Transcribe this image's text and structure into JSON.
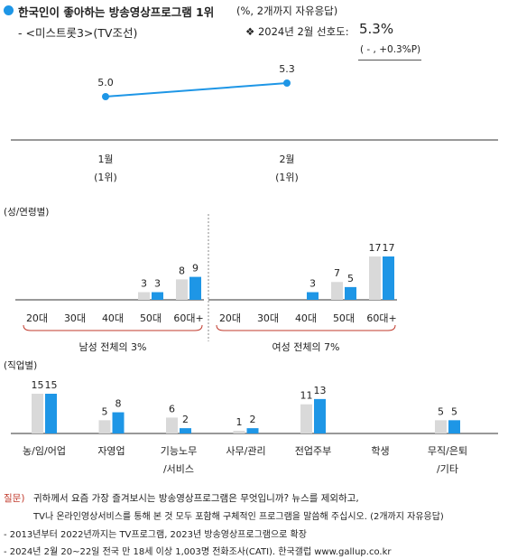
{
  "header": {
    "title": "한국인이 좋아하는 방송영상프로그램 1위",
    "title_suffix": "(%, 2개까지 자유응답)",
    "subtitle": "- <미스트롯3>(TV조선)",
    "pref_label": "❖  2024년 2월 선호도:",
    "pref_value": "5.3%",
    "pref_change": "( - , +0.3%P)"
  },
  "colors": {
    "accent": "#1e96e6",
    "grey_bar": "#d9d9d9",
    "axis": "#333333",
    "bracket": "#c0392b",
    "question": "#c0392b"
  },
  "chart_data": [
    {
      "id": "trend",
      "type": "line",
      "categories": [
        "1월",
        "2월"
      ],
      "rank_labels": [
        "(1위)",
        "(1위)"
      ],
      "values": [
        5.0,
        5.3
      ],
      "value_labels": [
        "5.0",
        "5.3"
      ]
    },
    {
      "id": "gender_age",
      "type": "bar",
      "title": "(성/연령별)",
      "groups": [
        {
          "categories": [
            "20대",
            "30대",
            "40대",
            "50대",
            "60대+"
          ],
          "series": [
            {
              "values": [
                0,
                0,
                0,
                3,
                8
              ],
              "labels": [
                "",
                "",
                "",
                "3",
                "8"
              ]
            },
            {
              "values": [
                0,
                0,
                0,
                3,
                9
              ],
              "labels": [
                "",
                "",
                "",
                "3",
                "9"
              ]
            }
          ],
          "total_label": "남성 전체의 3%"
        },
        {
          "categories": [
            "20대",
            "30대",
            "40대",
            "50대",
            "60대+"
          ],
          "series": [
            {
              "values": [
                0,
                0,
                0,
                7,
                17
              ],
              "labels": [
                "",
                "",
                "",
                "7",
                "17"
              ]
            },
            {
              "values": [
                0,
                0,
                3,
                5,
                17
              ],
              "labels": [
                "",
                "",
                "3",
                "5",
                "17"
              ]
            }
          ],
          "total_label": "여성 전체의 7%"
        }
      ]
    },
    {
      "id": "occupation",
      "type": "bar",
      "title": "(직업별)",
      "categories": [
        "농/임/어업",
        "자영업",
        "기능노무/서비스",
        "사무/관리",
        "전업주부",
        "학생",
        "무직/은퇴/기타"
      ],
      "category_lines": [
        [
          "농/임/어업"
        ],
        [
          "자영업"
        ],
        [
          "기능노무",
          "/서비스"
        ],
        [
          "사무/관리"
        ],
        [
          "전업주부"
        ],
        [
          "학생"
        ],
        [
          "무직/은퇴",
          "/기타"
        ]
      ],
      "series": [
        {
          "values": [
            15,
            5,
            6,
            1,
            11,
            0,
            5
          ],
          "labels": [
            "15",
            "5",
            "6",
            "1",
            "11",
            "",
            "5"
          ]
        },
        {
          "values": [
            15,
            8,
            2,
            2,
            13,
            0,
            5
          ],
          "labels": [
            "15",
            "8",
            "2",
            "2",
            "13",
            "",
            "5"
          ]
        }
      ]
    }
  ],
  "notes": {
    "q_label": "질문)",
    "q_line1": "귀하께서 요즘 가장 즐겨보시는 방송영상프로그램은 무엇입니까? 뉴스를 제외하고,",
    "q_line2": "TV나 온라인영상서비스를 통해 본 것 모두 포함해 구체적인 프로그램을 말씀해 주십시오. (2개까지 자유응답)",
    "note1": "- 2013년부터 2022년까지는 TV프로그램, 2023년 방송영상프로그램으로 확장",
    "note2": "- 2024년 2월 20~22일 전국 만 18세 이상 1,003명 전화조사(CATI). 한국갤럽 www.gallup.co.kr"
  }
}
